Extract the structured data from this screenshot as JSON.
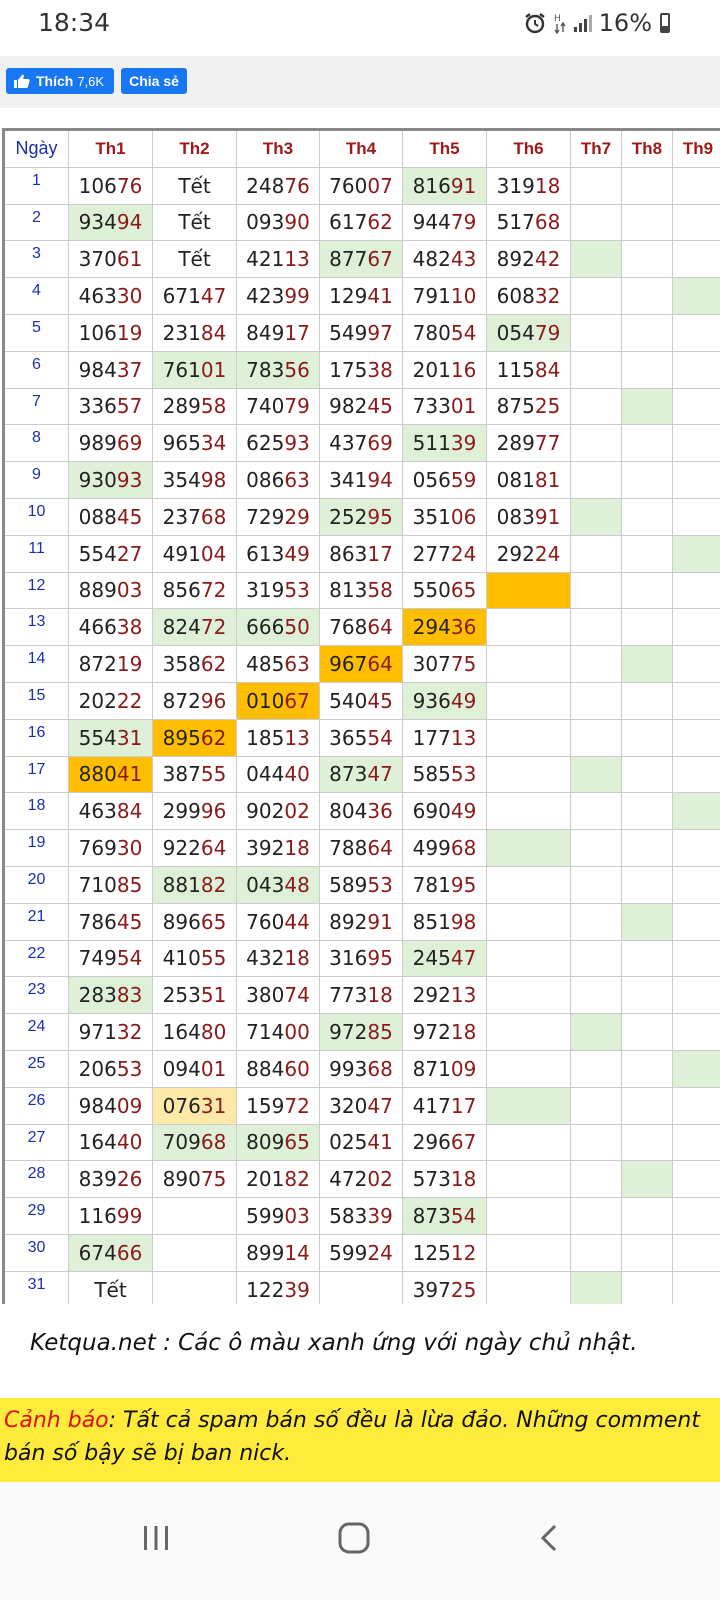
{
  "status": {
    "time": "18:34",
    "battery": "16%"
  },
  "share": {
    "like_label": "Thích",
    "like_count": "7,6K",
    "share_label": "Chia sẻ"
  },
  "table": {
    "headers": [
      "Ngày",
      "Th1",
      "Th2",
      "Th3",
      "Th4",
      "Th5",
      "Th6",
      "Th7",
      "Th8",
      "Th9"
    ],
    "rows": [
      {
        "day": "1",
        "cells": [
          "10676",
          "Tết",
          "24876",
          "76007",
          "81691",
          "31918",
          "",
          "",
          ""
        ],
        "colors": [
          "",
          "",
          "",
          "",
          "g",
          "",
          "",
          "",
          ""
        ]
      },
      {
        "day": "2",
        "cells": [
          "93494",
          "Tết",
          "09390",
          "61762",
          "94479",
          "51768",
          "",
          "",
          ""
        ],
        "colors": [
          "g",
          "",
          "",
          "",
          "",
          "",
          "",
          "",
          ""
        ]
      },
      {
        "day": "3",
        "cells": [
          "37061",
          "Tết",
          "42113",
          "87767",
          "48243",
          "89242",
          "",
          "",
          ""
        ],
        "colors": [
          "",
          "",
          "",
          "g",
          "",
          "",
          "g",
          "",
          ""
        ]
      },
      {
        "day": "4",
        "cells": [
          "46330",
          "67147",
          "42399",
          "12941",
          "79110",
          "60832",
          "",
          "",
          ""
        ],
        "colors": [
          "",
          "",
          "",
          "",
          "",
          "",
          "",
          "",
          "g"
        ]
      },
      {
        "day": "5",
        "cells": [
          "10619",
          "23184",
          "84917",
          "54997",
          "78054",
          "05479",
          "",
          "",
          ""
        ],
        "colors": [
          "",
          "",
          "",
          "",
          "",
          "g",
          "",
          "",
          ""
        ]
      },
      {
        "day": "6",
        "cells": [
          "98437",
          "76101",
          "78356",
          "17538",
          "20116",
          "11584",
          "",
          "",
          ""
        ],
        "colors": [
          "",
          "g",
          "g",
          "",
          "",
          "",
          "",
          "",
          ""
        ]
      },
      {
        "day": "7",
        "cells": [
          "33657",
          "28958",
          "74079",
          "98245",
          "73301",
          "87525",
          "",
          "",
          ""
        ],
        "colors": [
          "",
          "",
          "",
          "",
          "",
          "",
          "",
          "g",
          ""
        ]
      },
      {
        "day": "8",
        "cells": [
          "98969",
          "96534",
          "62593",
          "43769",
          "51139",
          "28977",
          "",
          "",
          ""
        ],
        "colors": [
          "",
          "",
          "",
          "",
          "g",
          "",
          "",
          "",
          ""
        ]
      },
      {
        "day": "9",
        "cells": [
          "93093",
          "35498",
          "08663",
          "34194",
          "05659",
          "08181",
          "",
          "",
          ""
        ],
        "colors": [
          "g",
          "",
          "",
          "",
          "",
          "",
          "",
          "",
          ""
        ]
      },
      {
        "day": "10",
        "cells": [
          "08845",
          "23768",
          "72929",
          "25295",
          "35106",
          "08391",
          "",
          "",
          ""
        ],
        "colors": [
          "",
          "",
          "",
          "g",
          "",
          "",
          "g",
          "",
          ""
        ]
      },
      {
        "day": "11",
        "cells": [
          "55427",
          "49104",
          "61349",
          "86317",
          "27724",
          "29224",
          "",
          "",
          ""
        ],
        "colors": [
          "",
          "",
          "",
          "",
          "",
          "",
          "",
          "",
          "g"
        ]
      },
      {
        "day": "12",
        "cells": [
          "88903",
          "85672",
          "31953",
          "81358",
          "55065",
          "",
          "",
          "",
          ""
        ],
        "colors": [
          "",
          "",
          "",
          "",
          "",
          "o",
          "",
          "",
          ""
        ]
      },
      {
        "day": "13",
        "cells": [
          "46638",
          "82472",
          "66650",
          "76864",
          "29436",
          "",
          "",
          "",
          ""
        ],
        "colors": [
          "",
          "g",
          "g",
          "",
          "o",
          "",
          "",
          "",
          ""
        ]
      },
      {
        "day": "14",
        "cells": [
          "87219",
          "35862",
          "48563",
          "96764",
          "30775",
          "",
          "",
          "",
          ""
        ],
        "colors": [
          "",
          "",
          "",
          "o",
          "",
          "",
          "",
          "g",
          ""
        ]
      },
      {
        "day": "15",
        "cells": [
          "20222",
          "87296",
          "01067",
          "54045",
          "93649",
          "",
          "",
          "",
          ""
        ],
        "colors": [
          "",
          "",
          "o",
          "",
          "g",
          "",
          "",
          "",
          ""
        ]
      },
      {
        "day": "16",
        "cells": [
          "55431",
          "89562",
          "18513",
          "36554",
          "17713",
          "",
          "",
          "",
          ""
        ],
        "colors": [
          "g",
          "o",
          "",
          "",
          "",
          "",
          "",
          "",
          ""
        ]
      },
      {
        "day": "17",
        "cells": [
          "88041",
          "38755",
          "04440",
          "87347",
          "58553",
          "",
          "",
          "",
          ""
        ],
        "colors": [
          "o",
          "",
          "",
          "g",
          "",
          "",
          "g",
          "",
          ""
        ]
      },
      {
        "day": "18",
        "cells": [
          "46384",
          "29996",
          "90202",
          "80436",
          "69049",
          "",
          "",
          "",
          ""
        ],
        "colors": [
          "",
          "",
          "",
          "",
          "",
          "",
          "",
          "",
          "g"
        ]
      },
      {
        "day": "19",
        "cells": [
          "76930",
          "92264",
          "39218",
          "78864",
          "49968",
          "",
          "",
          "",
          ""
        ],
        "colors": [
          "",
          "",
          "",
          "",
          "",
          "g",
          "",
          "",
          ""
        ]
      },
      {
        "day": "20",
        "cells": [
          "71085",
          "88182",
          "04348",
          "58953",
          "78195",
          "",
          "",
          "",
          ""
        ],
        "colors": [
          "",
          "g",
          "g",
          "",
          "",
          "",
          "",
          "",
          ""
        ]
      },
      {
        "day": "21",
        "cells": [
          "78645",
          "89665",
          "76044",
          "89291",
          "85198",
          "",
          "",
          "",
          ""
        ],
        "colors": [
          "",
          "",
          "",
          "",
          "",
          "",
          "",
          "g",
          ""
        ]
      },
      {
        "day": "22",
        "cells": [
          "74954",
          "41055",
          "43218",
          "31695",
          "24547",
          "",
          "",
          "",
          ""
        ],
        "colors": [
          "",
          "",
          "",
          "",
          "g",
          "",
          "",
          "",
          ""
        ]
      },
      {
        "day": "23",
        "cells": [
          "28383",
          "25351",
          "38074",
          "77318",
          "29213",
          "",
          "",
          "",
          ""
        ],
        "colors": [
          "g",
          "",
          "",
          "",
          "",
          "",
          "",
          "",
          ""
        ]
      },
      {
        "day": "24",
        "cells": [
          "97132",
          "16480",
          "71400",
          "97285",
          "97218",
          "",
          "",
          "",
          ""
        ],
        "colors": [
          "",
          "",
          "",
          "g",
          "",
          "",
          "g",
          "",
          ""
        ]
      },
      {
        "day": "25",
        "cells": [
          "20653",
          "09401",
          "88460",
          "99368",
          "87109",
          "",
          "",
          "",
          ""
        ],
        "colors": [
          "",
          "",
          "",
          "",
          "",
          "",
          "",
          "",
          "g"
        ]
      },
      {
        "day": "26",
        "cells": [
          "98409",
          "07631",
          "15972",
          "32047",
          "41717",
          "",
          "",
          "",
          ""
        ],
        "colors": [
          "",
          "y",
          "",
          "",
          "",
          "g",
          "",
          "",
          ""
        ]
      },
      {
        "day": "27",
        "cells": [
          "16440",
          "70968",
          "80965",
          "02541",
          "29667",
          "",
          "",
          "",
          ""
        ],
        "colors": [
          "",
          "g",
          "g",
          "",
          "",
          "",
          "",
          "",
          ""
        ]
      },
      {
        "day": "28",
        "cells": [
          "83926",
          "89075",
          "20182",
          "47202",
          "57318",
          "",
          "",
          "",
          ""
        ],
        "colors": [
          "",
          "",
          "",
          "",
          "",
          "",
          "",
          "g",
          ""
        ]
      },
      {
        "day": "29",
        "cells": [
          "11699",
          "",
          "59903",
          "58339",
          "87354",
          "",
          "",
          "",
          ""
        ],
        "colors": [
          "",
          "",
          "",
          "",
          "g",
          "",
          "",
          "",
          ""
        ]
      },
      {
        "day": "30",
        "cells": [
          "67466",
          "",
          "89914",
          "59924",
          "12512",
          "",
          "",
          "",
          ""
        ],
        "colors": [
          "g",
          "",
          "",
          "",
          "",
          "",
          "",
          "",
          ""
        ]
      },
      {
        "day": "31",
        "cells": [
          "Tết",
          "",
          "12239",
          "",
          "39725",
          "",
          "",
          "",
          ""
        ],
        "colors": [
          "",
          "",
          "",
          "",
          "",
          "",
          "g",
          "",
          ""
        ]
      }
    ]
  },
  "note": "Ketqua.net : Các ô màu xanh ứng với ngày chủ nhật.",
  "warning": {
    "title": "Cảnh báo",
    "text": ": Tất cả spam bán số đều là lừa đảo. Những comment bán số bậy sẽ bị ban nick."
  },
  "colors": {
    "sunday_green": "#dff0d8",
    "highlight_orange": "#ffbf00",
    "highlight_light": "#ffe9a8",
    "facebook_blue": "#1877f2",
    "warning_yellow": "#ffeb3b"
  }
}
